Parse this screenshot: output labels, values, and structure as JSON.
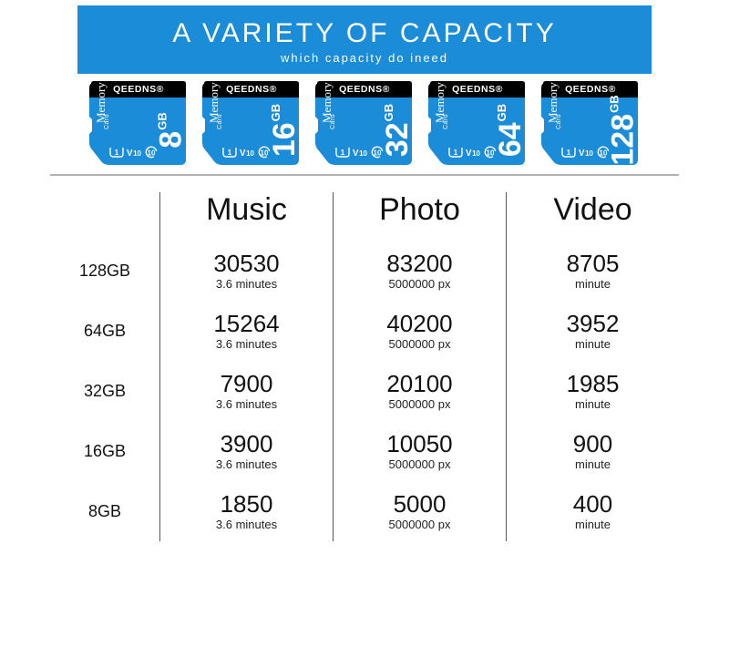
{
  "banner": {
    "title": "A VARIETY OF CAPACITY",
    "subtitle": "which capacity do ineed",
    "bg_color": "#1a8cd8",
    "text_color": "#ffffff"
  },
  "cards": {
    "brand": "QEEDNS®",
    "mem_label": "Memory",
    "card_label": "Card",
    "unit": "GB",
    "top_color": "#000000",
    "body_color": "#1a8cd8",
    "sizes": [
      "8",
      "16",
      "32",
      "64",
      "128"
    ]
  },
  "table": {
    "columns": [
      "Music",
      "Photo",
      "Video"
    ],
    "header_fontsize": 34,
    "value_fontsize": 26,
    "sub_fontsize": 13,
    "divider_color": "#555555",
    "rows": [
      {
        "label": "128GB",
        "music": {
          "value": "30530",
          "sub": "3.6 minutes"
        },
        "photo": {
          "value": "83200",
          "sub": "5000000 px"
        },
        "video": {
          "value": "8705",
          "sub": "minute"
        }
      },
      {
        "label": "64GB",
        "music": {
          "value": "15264",
          "sub": "3.6 minutes"
        },
        "photo": {
          "value": "40200",
          "sub": "5000000 px"
        },
        "video": {
          "value": "3952",
          "sub": "minute"
        }
      },
      {
        "label": "32GB",
        "music": {
          "value": "7900",
          "sub": "3.6 minutes"
        },
        "photo": {
          "value": "20100",
          "sub": "5000000 px"
        },
        "video": {
          "value": "1985",
          "sub": "minute"
        }
      },
      {
        "label": "16GB",
        "music": {
          "value": "3900",
          "sub": "3.6 minutes"
        },
        "photo": {
          "value": "10050",
          "sub": "5000000 px"
        },
        "video": {
          "value": "900",
          "sub": "minute"
        }
      },
      {
        "label": "8GB",
        "music": {
          "value": "1850",
          "sub": "3.6 minutes"
        },
        "photo": {
          "value": "5000",
          "sub": "5000000 px"
        },
        "video": {
          "value": "400",
          "sub": "minute"
        }
      }
    ]
  },
  "hr_color": "#b0b0b0"
}
